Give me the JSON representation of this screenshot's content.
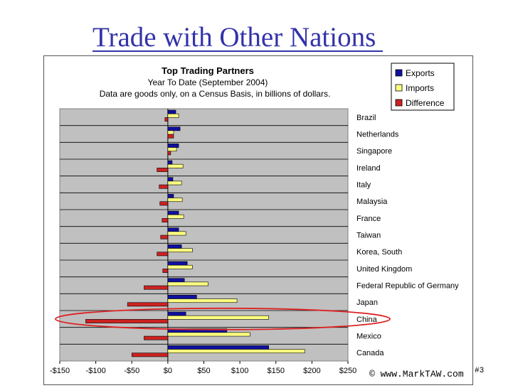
{
  "slide": {
    "title": "Trade with Other Nations ",
    "credit": "© www.MarkTAW.com",
    "slide_number": "#3"
  },
  "chart_data": {
    "type": "bar",
    "orientation": "horizontal",
    "title": "Top Trading Partners",
    "subtitle": "Year To Date (September 2004)",
    "note": "Data are goods only, on a Census Basis, in billions of dollars.",
    "xlim": [
      -150,
      250
    ],
    "x_ticks": [
      "-$150",
      "-$100",
      "-$50",
      "$0",
      "$50",
      "$100",
      "$150",
      "$200",
      "$250"
    ],
    "grid": true,
    "legend_position": "top-right",
    "categories": [
      "Brazil",
      "Netherlands",
      "Singapore",
      "Ireland",
      "Italy",
      "Malaysia",
      "France",
      "Taiwan",
      "Korea, South",
      "United Kingdom",
      "Federal Republic of Germany",
      "Japan",
      "China",
      "Mexico",
      "Canada"
    ],
    "series": [
      {
        "name": "Exports",
        "color": "#1010a0",
        "values": [
          11,
          17,
          15,
          6,
          7,
          8,
          15,
          15,
          19,
          27,
          23,
          40,
          25,
          82,
          140
        ]
      },
      {
        "name": "Imports",
        "color": "#ffff80",
        "values": [
          15,
          8,
          12,
          21,
          19,
          20,
          22,
          25,
          34,
          34,
          56,
          96,
          140,
          114,
          190
        ]
      },
      {
        "name": "Difference",
        "color": "#cc2222",
        "values": [
          -4,
          8,
          4,
          -15,
          -12,
          -11,
          -8,
          -10,
          -15,
          -7,
          -33,
          -56,
          -114,
          -33,
          -50
        ]
      }
    ],
    "highlight": "China",
    "highlight_color": "#dd2222"
  }
}
